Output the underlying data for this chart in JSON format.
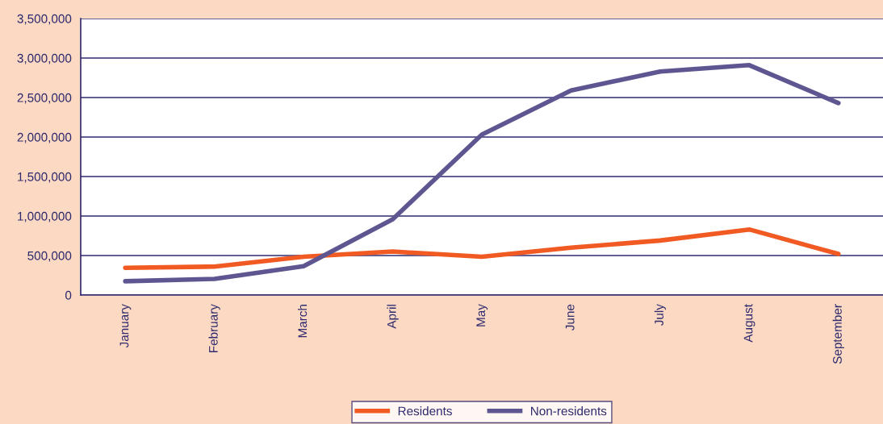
{
  "chart_data": {
    "type": "line",
    "categories": [
      "January",
      "February",
      "March",
      "April",
      "May",
      "June",
      "July",
      "August",
      "September"
    ],
    "series": [
      {
        "name": "Residents",
        "color": "#f15a22",
        "values": [
          345000,
          360000,
          485000,
          550000,
          485000,
          600000,
          690000,
          830000,
          520000
        ]
      },
      {
        "name": "Non-residents",
        "color": "#5e5690",
        "values": [
          175000,
          205000,
          365000,
          960000,
          2030000,
          2590000,
          2830000,
          2910000,
          2430000
        ]
      }
    ],
    "ylim": [
      0,
      3500000
    ],
    "yticks": [
      {
        "value": 0,
        "label": "0"
      },
      {
        "value": 500000,
        "label": "500,000"
      },
      {
        "value": 1000000,
        "label": "1,000,000"
      },
      {
        "value": 1500000,
        "label": "1,500,000"
      },
      {
        "value": 2000000,
        "label": "2,000,000"
      },
      {
        "value": 2500000,
        "label": "2,500,000"
      },
      {
        "value": 3000000,
        "label": "3,000,000"
      },
      {
        "value": 3500000,
        "label": "3,500,000"
      }
    ],
    "grid": "y",
    "legend": "bottom",
    "marker": "none",
    "line_style": "solid"
  }
}
